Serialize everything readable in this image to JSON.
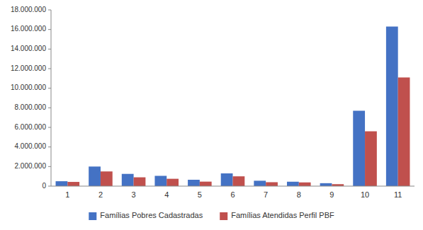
{
  "chart_data": {
    "type": "bar",
    "categories": [
      1,
      2,
      3,
      4,
      5,
      6,
      7,
      8,
      9,
      10,
      11
    ],
    "series": [
      {
        "name": "Famílias Pobres Cadastradas",
        "color": "#4472C4",
        "values": [
          500000,
          2000000,
          1250000,
          1050000,
          650000,
          1300000,
          550000,
          450000,
          300000,
          7700000,
          16300000
        ]
      },
      {
        "name": "Famílias Atendidas Perfil PBF",
        "color": "#C0504D",
        "values": [
          430000,
          1500000,
          900000,
          750000,
          460000,
          1000000,
          400000,
          380000,
          200000,
          5600000,
          11100000
        ]
      }
    ],
    "ylim": [
      0,
      18000000
    ],
    "yticks": [
      0,
      {
        "value": 2000000,
        "label": "2.000.000"
      },
      {
        "value": 4000000,
        "label": "4.000.000"
      },
      {
        "value": 6000000,
        "label": "6.000.000"
      },
      {
        "value": 8000000,
        "label": "8.000.000"
      },
      {
        "value": 10000000,
        "label": "10.000.000"
      },
      {
        "value": 12000000,
        "label": "12.000.000"
      },
      {
        "value": 14000000,
        "label": "14.000.000"
      },
      {
        "value": 16000000,
        "label": "16.000.000"
      },
      {
        "value": 18000000,
        "label": "18.000.000"
      }
    ],
    "grid": false,
    "legend": "bottom"
  }
}
